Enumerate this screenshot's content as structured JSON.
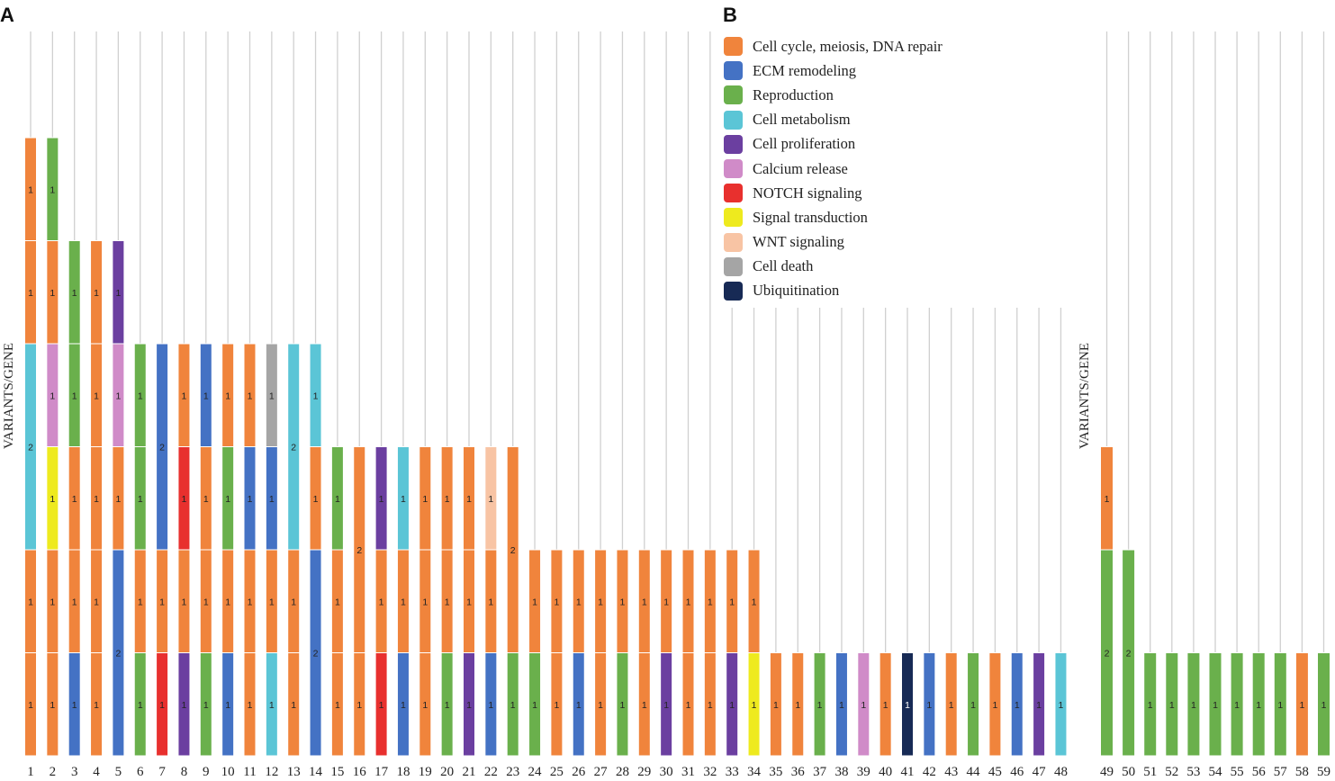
{
  "panels": {
    "a": "A",
    "b": "B"
  },
  "legend": [
    {
      "label": "Cell cycle, meiosis, DNA repair",
      "color": "#F0843C"
    },
    {
      "label": "ECM remodeling",
      "color": "#4472C4"
    },
    {
      "label": "Reproduction",
      "color": "#6AB04C"
    },
    {
      "label": "Cell metabolism",
      "color": "#5BC5D6"
    },
    {
      "label": "Cell proliferation",
      "color": "#6B3FA0"
    },
    {
      "label": "Calcium release",
      "color": "#D08BC8"
    },
    {
      "label": "NOTCH signaling",
      "color": "#E8302E"
    },
    {
      "label": "Signal transduction",
      "color": "#EEEA1E"
    },
    {
      "label": "WNT signaling",
      "color": "#F8C4A4"
    },
    {
      "label": "Cell death",
      "color": "#A5A5A5"
    },
    {
      "label": "Ubiquitination",
      "color": "#172A55"
    }
  ],
  "chart_data": [
    {
      "panel": "A",
      "type": "bar",
      "stacked": true,
      "ylabel": "VARIANTS/GENE",
      "xlabel": "",
      "ylim": [
        0,
        6
      ],
      "grid": "vertical",
      "categories": [
        "1",
        "2",
        "3",
        "4",
        "5",
        "6",
        "7",
        "8",
        "9",
        "10",
        "11",
        "12",
        "13",
        "14",
        "15",
        "16",
        "17",
        "18",
        "19",
        "20",
        "21",
        "22",
        "23",
        "24",
        "25",
        "26",
        "27",
        "28",
        "29",
        "30",
        "31",
        "32",
        "33",
        "34",
        "35",
        "36",
        "37",
        "38",
        "39",
        "40",
        "41",
        "42",
        "43",
        "44",
        "45",
        "46",
        "47",
        "48"
      ],
      "bars": [
        [
          [
            "Cell cycle, meiosis, DNA repair",
            1
          ],
          [
            "Cell cycle, meiosis, DNA repair",
            1
          ],
          [
            "Cell metabolism",
            2
          ],
          [
            "Cell cycle, meiosis, DNA repair",
            1
          ],
          [
            "Cell cycle, meiosis, DNA repair",
            1
          ]
        ],
        [
          [
            "Cell cycle, meiosis, DNA repair",
            1
          ],
          [
            "Cell cycle, meiosis, DNA repair",
            1
          ],
          [
            "Signal transduction",
            1
          ],
          [
            "Calcium release",
            1
          ],
          [
            "Cell cycle, meiosis, DNA repair",
            1
          ],
          [
            "Reproduction",
            1
          ]
        ],
        [
          [
            "ECM remodeling",
            1
          ],
          [
            "Cell cycle, meiosis, DNA repair",
            1
          ],
          [
            "Cell cycle, meiosis, DNA repair",
            1
          ],
          [
            "Reproduction",
            1
          ],
          [
            "Reproduction",
            1
          ]
        ],
        [
          [
            "Cell cycle, meiosis, DNA repair",
            1
          ],
          [
            "Cell cycle, meiosis, DNA repair",
            1
          ],
          [
            "Cell cycle, meiosis, DNA repair",
            1
          ],
          [
            "Cell cycle, meiosis, DNA repair",
            1
          ],
          [
            "Cell cycle, meiosis, DNA repair",
            1
          ]
        ],
        [
          [
            "ECM remodeling",
            2
          ],
          [
            "Cell cycle, meiosis, DNA repair",
            1
          ],
          [
            "Calcium release",
            1
          ],
          [
            "Cell proliferation",
            1
          ]
        ],
        [
          [
            "Reproduction",
            1
          ],
          [
            "Cell cycle, meiosis, DNA repair",
            1
          ],
          [
            "Reproduction",
            1
          ],
          [
            "Reproduction",
            1
          ]
        ],
        [
          [
            "NOTCH signaling",
            1
          ],
          [
            "Cell cycle, meiosis, DNA repair",
            1
          ],
          [
            "ECM remodeling",
            2
          ]
        ],
        [
          [
            "Cell proliferation",
            1
          ],
          [
            "Cell cycle, meiosis, DNA repair",
            1
          ],
          [
            "NOTCH signaling",
            1
          ],
          [
            "Cell cycle, meiosis, DNA repair",
            1
          ]
        ],
        [
          [
            "Reproduction",
            1
          ],
          [
            "Cell cycle, meiosis, DNA repair",
            1
          ],
          [
            "Cell cycle, meiosis, DNA repair",
            1
          ],
          [
            "ECM remodeling",
            1
          ]
        ],
        [
          [
            "ECM remodeling",
            1
          ],
          [
            "Cell cycle, meiosis, DNA repair",
            1
          ],
          [
            "Reproduction",
            1
          ],
          [
            "Cell cycle, meiosis, DNA repair",
            1
          ]
        ],
        [
          [
            "Cell cycle, meiosis, DNA repair",
            1
          ],
          [
            "Cell cycle, meiosis, DNA repair",
            1
          ],
          [
            "ECM remodeling",
            1
          ],
          [
            "Cell cycle, meiosis, DNA repair",
            1
          ]
        ],
        [
          [
            "Cell metabolism",
            1
          ],
          [
            "Cell cycle, meiosis, DNA repair",
            1
          ],
          [
            "ECM remodeling",
            1
          ],
          [
            "Cell death",
            1
          ]
        ],
        [
          [
            "Cell cycle, meiosis, DNA repair",
            1
          ],
          [
            "Cell cycle, meiosis, DNA repair",
            1
          ],
          [
            "Cell metabolism",
            2
          ]
        ],
        [
          [
            "ECM remodeling",
            2
          ],
          [
            "Cell cycle, meiosis, DNA repair",
            1
          ],
          [
            "Cell metabolism",
            1
          ]
        ],
        [
          [
            "Cell cycle, meiosis, DNA repair",
            1
          ],
          [
            "Cell cycle, meiosis, DNA repair",
            1
          ],
          [
            "Reproduction",
            1
          ]
        ],
        [
          [
            "Cell cycle, meiosis, DNA repair",
            1
          ],
          [
            "Cell cycle, meiosis, DNA repair",
            2
          ]
        ],
        [
          [
            "NOTCH signaling",
            1
          ],
          [
            "Cell cycle, meiosis, DNA repair",
            1
          ],
          [
            "Cell proliferation",
            1
          ]
        ],
        [
          [
            "ECM remodeling",
            1
          ],
          [
            "Cell cycle, meiosis, DNA repair",
            1
          ],
          [
            "Cell metabolism",
            1
          ]
        ],
        [
          [
            "Cell cycle, meiosis, DNA repair",
            1
          ],
          [
            "Cell cycle, meiosis, DNA repair",
            1
          ],
          [
            "Cell cycle, meiosis, DNA repair",
            1
          ]
        ],
        [
          [
            "Reproduction",
            1
          ],
          [
            "Cell cycle, meiosis, DNA repair",
            1
          ],
          [
            "Cell cycle, meiosis, DNA repair",
            1
          ]
        ],
        [
          [
            "Cell proliferation",
            1
          ],
          [
            "Cell cycle, meiosis, DNA repair",
            1
          ],
          [
            "Cell cycle, meiosis, DNA repair",
            1
          ]
        ],
        [
          [
            "ECM remodeling",
            1
          ],
          [
            "Cell cycle, meiosis, DNA repair",
            1
          ],
          [
            "WNT signaling",
            1
          ]
        ],
        [
          [
            "Reproduction",
            1
          ],
          [
            "Cell cycle, meiosis, DNA repair",
            2
          ]
        ],
        [
          [
            "Reproduction",
            1
          ],
          [
            "Cell cycle, meiosis, DNA repair",
            1
          ]
        ],
        [
          [
            "Cell cycle, meiosis, DNA repair",
            1
          ],
          [
            "Cell cycle, meiosis, DNA repair",
            1
          ]
        ],
        [
          [
            "ECM remodeling",
            1
          ],
          [
            "Cell cycle, meiosis, DNA repair",
            1
          ]
        ],
        [
          [
            "Cell cycle, meiosis, DNA repair",
            1
          ],
          [
            "Cell cycle, meiosis, DNA repair",
            1
          ]
        ],
        [
          [
            "Reproduction",
            1
          ],
          [
            "Cell cycle, meiosis, DNA repair",
            1
          ]
        ],
        [
          [
            "Cell cycle, meiosis, DNA repair",
            1
          ],
          [
            "Cell cycle, meiosis, DNA repair",
            1
          ]
        ],
        [
          [
            "Cell proliferation",
            1
          ],
          [
            "Cell cycle, meiosis, DNA repair",
            1
          ]
        ],
        [
          [
            "Cell cycle, meiosis, DNA repair",
            1
          ],
          [
            "Cell cycle, meiosis, DNA repair",
            1
          ]
        ],
        [
          [
            "Cell cycle, meiosis, DNA repair",
            1
          ],
          [
            "Cell cycle, meiosis, DNA repair",
            1
          ]
        ],
        [
          [
            "Cell proliferation",
            1
          ],
          [
            "Cell cycle, meiosis, DNA repair",
            1
          ]
        ],
        [
          [
            "Signal transduction",
            1
          ],
          [
            "Cell cycle, meiosis, DNA repair",
            1
          ]
        ],
        [
          [
            "Cell cycle, meiosis, DNA repair",
            1
          ]
        ],
        [
          [
            "Cell cycle, meiosis, DNA repair",
            1
          ]
        ],
        [
          [
            "Reproduction",
            1
          ]
        ],
        [
          [
            "ECM remodeling",
            1
          ]
        ],
        [
          [
            "Calcium release",
            1
          ]
        ],
        [
          [
            "Cell cycle, meiosis, DNA repair",
            1
          ]
        ],
        [
          [
            "Ubiquitination",
            1
          ]
        ],
        [
          [
            "ECM remodeling",
            1
          ]
        ],
        [
          [
            "Cell cycle, meiosis, DNA repair",
            1
          ]
        ],
        [
          [
            "Reproduction",
            1
          ]
        ],
        [
          [
            "Cell cycle, meiosis, DNA repair",
            1
          ]
        ],
        [
          [
            "ECM remodeling",
            1
          ]
        ],
        [
          [
            "Cell proliferation",
            1
          ]
        ],
        [
          [
            "Cell metabolism",
            1
          ]
        ]
      ]
    },
    {
      "panel": "B",
      "type": "bar",
      "stacked": true,
      "ylabel": "VARIANTS/GENE",
      "xlabel": "",
      "ylim": [
        0,
        6
      ],
      "grid": "vertical",
      "categories": [
        "49",
        "50",
        "51",
        "52",
        "53",
        "54",
        "55",
        "56",
        "57",
        "58",
        "59"
      ],
      "bars": [
        [
          [
            "Reproduction",
            2
          ],
          [
            "Cell cycle, meiosis, DNA repair",
            1
          ]
        ],
        [
          [
            "Reproduction",
            2
          ]
        ],
        [
          [
            "Reproduction",
            1
          ]
        ],
        [
          [
            "Reproduction",
            1
          ]
        ],
        [
          [
            "Reproduction",
            1
          ]
        ],
        [
          [
            "Reproduction",
            1
          ]
        ],
        [
          [
            "Reproduction",
            1
          ]
        ],
        [
          [
            "Reproduction",
            1
          ]
        ],
        [
          [
            "Reproduction",
            1
          ]
        ],
        [
          [
            "Cell cycle, meiosis, DNA repair",
            1
          ]
        ],
        [
          [
            "Reproduction",
            1
          ]
        ]
      ]
    }
  ]
}
